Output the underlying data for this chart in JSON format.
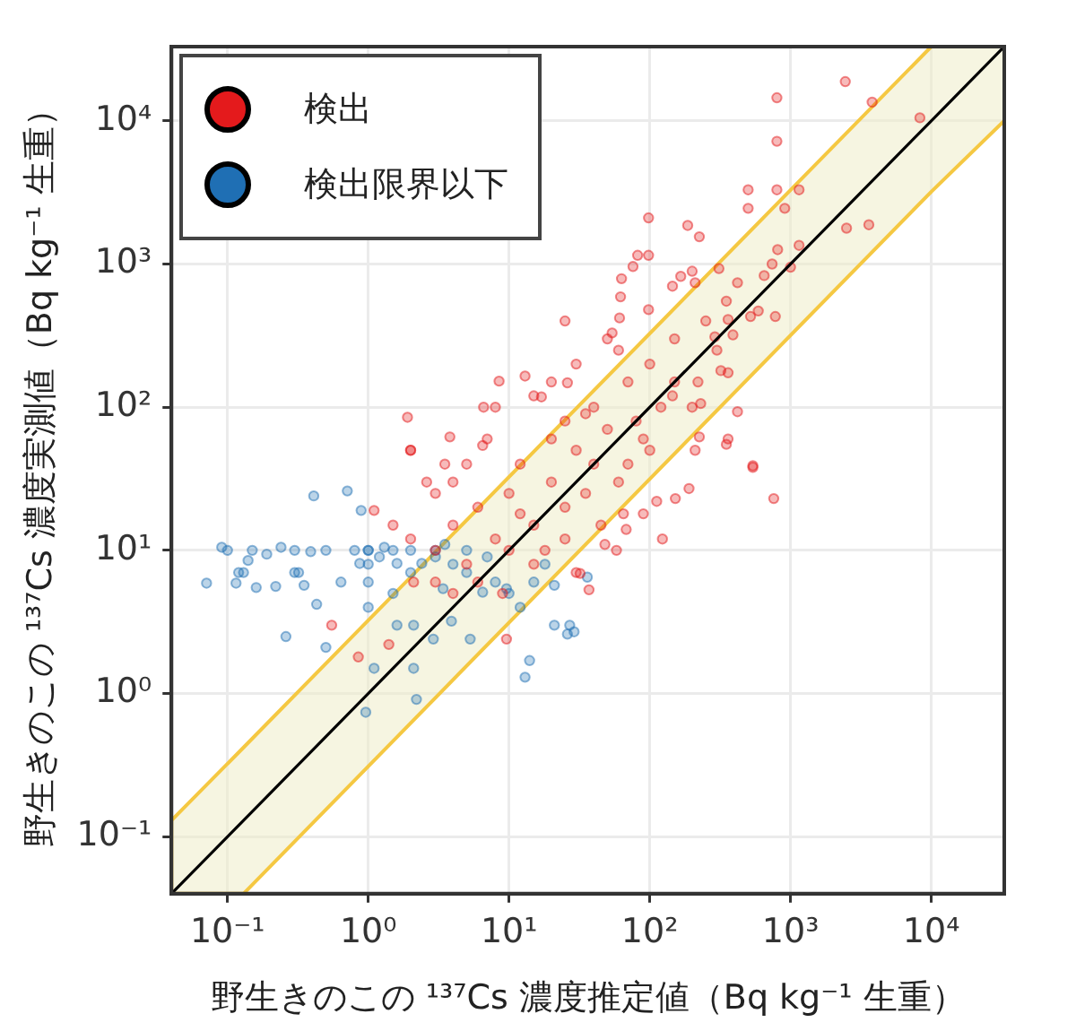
{
  "chart_data": {
    "type": "scatter",
    "xlabel": "野生きのこの ¹³⁷Cs 濃度推定値（Bq kg⁻¹ 生重）",
    "ylabel": "野生きのこの ¹³⁷Cs 濃度実測値（Bq kg⁻¹ 生重）",
    "log": "xy",
    "xlim": [
      0.04,
      33000
    ],
    "ylim": [
      0.04,
      33000
    ],
    "xticks": [
      {
        "value": 0.1,
        "label": "10⁻¹"
      },
      {
        "value": 1,
        "label": "10⁰"
      },
      {
        "value": 10,
        "label": "10¹"
      },
      {
        "value": 100,
        "label": "10²"
      },
      {
        "value": 1000,
        "label": "10³"
      },
      {
        "value": 10000,
        "label": "10⁴"
      }
    ],
    "yticks": [
      {
        "value": 0.1,
        "label": "10⁻¹"
      },
      {
        "value": 1,
        "label": "10⁰"
      },
      {
        "value": 10,
        "label": "10¹"
      },
      {
        "value": 100,
        "label": "10²"
      },
      {
        "value": 1000,
        "label": "10³"
      },
      {
        "value": 10000,
        "label": "10⁴"
      }
    ],
    "grid": true,
    "legend": "top left",
    "marker": "circle",
    "series": [
      {
        "name": "検出",
        "color": "#e41a1c",
        "x": [
          2450,
          3800,
          8300,
          800,
          800,
          500,
          800,
          1150,
          500,
          910,
          186,
          225,
          98,
          2500,
          3600,
          82,
          98,
          76,
          200,
          650,
          810,
          1150,
          1000,
          63,
          62,
          61,
          54,
          98,
          350,
          360,
          520,
          590,
          780,
          420,
          310,
          210,
          166,
          145,
          540,
          420,
          360,
          225,
          230,
          145,
          220,
          320,
          360,
          290,
          390,
          740,
          540,
          760,
          190,
          152,
          123,
          112,
          90,
          37,
          30,
          58,
          48,
          68,
          65,
          210,
          350,
          25,
          8.5,
          6.6,
          1.9,
          2.0,
          3.8,
          13,
          17,
          26,
          2.0,
          1.1,
          0.85,
          1.4,
          0.55,
          3.5,
          2.6,
          2.1,
          9.6,
          32,
          6.5,
          3,
          4,
          5,
          6,
          8,
          10,
          10,
          12,
          15,
          20,
          20,
          25,
          30,
          40,
          40,
          50,
          60,
          70,
          80,
          100,
          100,
          120,
          150,
          150,
          200,
          250,
          300,
          5,
          7,
          3,
          2,
          1.5,
          4,
          8,
          15,
          20,
          30,
          50,
          9,
          15,
          25,
          6,
          4,
          3,
          12,
          18,
          35,
          45,
          70,
          90,
          60,
          35,
          25
        ],
        "values": [
          18800,
          13500,
          10500,
          14500,
          7200,
          3300,
          3300,
          3300,
          2450,
          2450,
          1860,
          1550,
          2100,
          1780,
          1880,
          1150,
          1150,
          960,
          890,
          830,
          1260,
          1350,
          950,
          790,
          590,
          420,
          330,
          480,
          550,
          410,
          430,
          470,
          430,
          740,
          930,
          740,
          820,
          700,
          38,
          93,
          60,
          62,
          106,
          120,
          150,
          180,
          174,
          310,
          320,
          1000,
          39,
          23,
          27,
          23,
          12,
          22,
          18,
          5.3,
          7.0,
          10,
          11,
          14,
          18,
          50,
          55,
          400,
          152,
          100,
          85,
          50,
          62,
          165,
          118,
          148,
          50,
          19,
          1.8,
          2.2,
          3.0,
          40,
          30,
          6.0,
          2.4,
          6.9,
          54,
          10,
          15,
          8,
          20,
          12,
          25,
          10,
          40,
          15,
          30,
          60,
          20,
          50,
          40,
          100,
          70,
          30,
          150,
          80,
          200,
          50,
          100,
          300,
          150,
          100,
          400,
          250,
          40,
          60,
          25,
          12,
          15,
          30,
          100,
          120,
          150,
          200,
          300,
          5,
          8,
          12,
          6,
          5,
          6,
          18,
          10,
          25,
          15,
          40,
          60,
          250,
          90,
          80
        ]
      },
      {
        "name": "検出限界以下",
        "color": "#1f6fb4",
        "x": [
          0.091,
          0.071,
          0.115,
          0.16,
          0.22,
          0.35,
          0.14,
          0.19,
          0.24,
          0.41,
          0.71,
          0.89,
          0.26,
          0.39,
          0.43,
          0.5,
          0.96,
          2.2,
          2.1,
          1.1,
          0.64,
          0.87,
          1.3,
          1.6,
          1.6,
          2.1,
          2.9,
          3.9,
          5.3,
          6.5,
          14,
          13,
          21,
          26,
          21,
          9.6,
          3.4,
          2.4,
          3.5,
          36,
          27,
          29,
          0.1,
          0.15,
          0.3,
          0.5,
          0.8,
          1,
          1.5,
          2,
          3,
          5,
          0.12,
          0.13,
          0.3,
          0.32,
          1,
          1,
          1,
          1,
          1.2,
          1.5,
          2,
          3,
          4,
          5,
          7,
          8,
          10,
          12,
          15,
          18
        ],
        "values": [
          10.5,
          5.9,
          5.9,
          5.5,
          5.6,
          5.7,
          8.5,
          9.4,
          10.5,
          24,
          26,
          19,
          2.5,
          9.8,
          4.2,
          2.1,
          0.74,
          0.91,
          1.5,
          1.5,
          6.0,
          8.1,
          10.5,
          8.1,
          3.0,
          3.0,
          2.4,
          3.2,
          2.4,
          5.1,
          1.7,
          1.3,
          3.0,
          2.6,
          5.7,
          5.4,
          5.4,
          8.1,
          11,
          6.5,
          3.0,
          2.7,
          10,
          10,
          10,
          10,
          10,
          10,
          10,
          10,
          10,
          10,
          7,
          7,
          7,
          7,
          10,
          8,
          6,
          4,
          9,
          5,
          7,
          9,
          8,
          7,
          9,
          6,
          5,
          4,
          6,
          8
        ]
      },
      {
        "type": "line",
        "marker": "none",
        "color": "#000000",
        "x": [
          0.04,
          0.13,
          10000,
          33000
        ],
        "values": [
          0.04,
          0.13,
          10000,
          33000
        ],
        "lower": [
          0.04,
          0.04,
          3200,
          10000
        ],
        "upper": [
          0.13,
          0.42,
          33000,
          33000
        ]
      }
    ]
  }
}
